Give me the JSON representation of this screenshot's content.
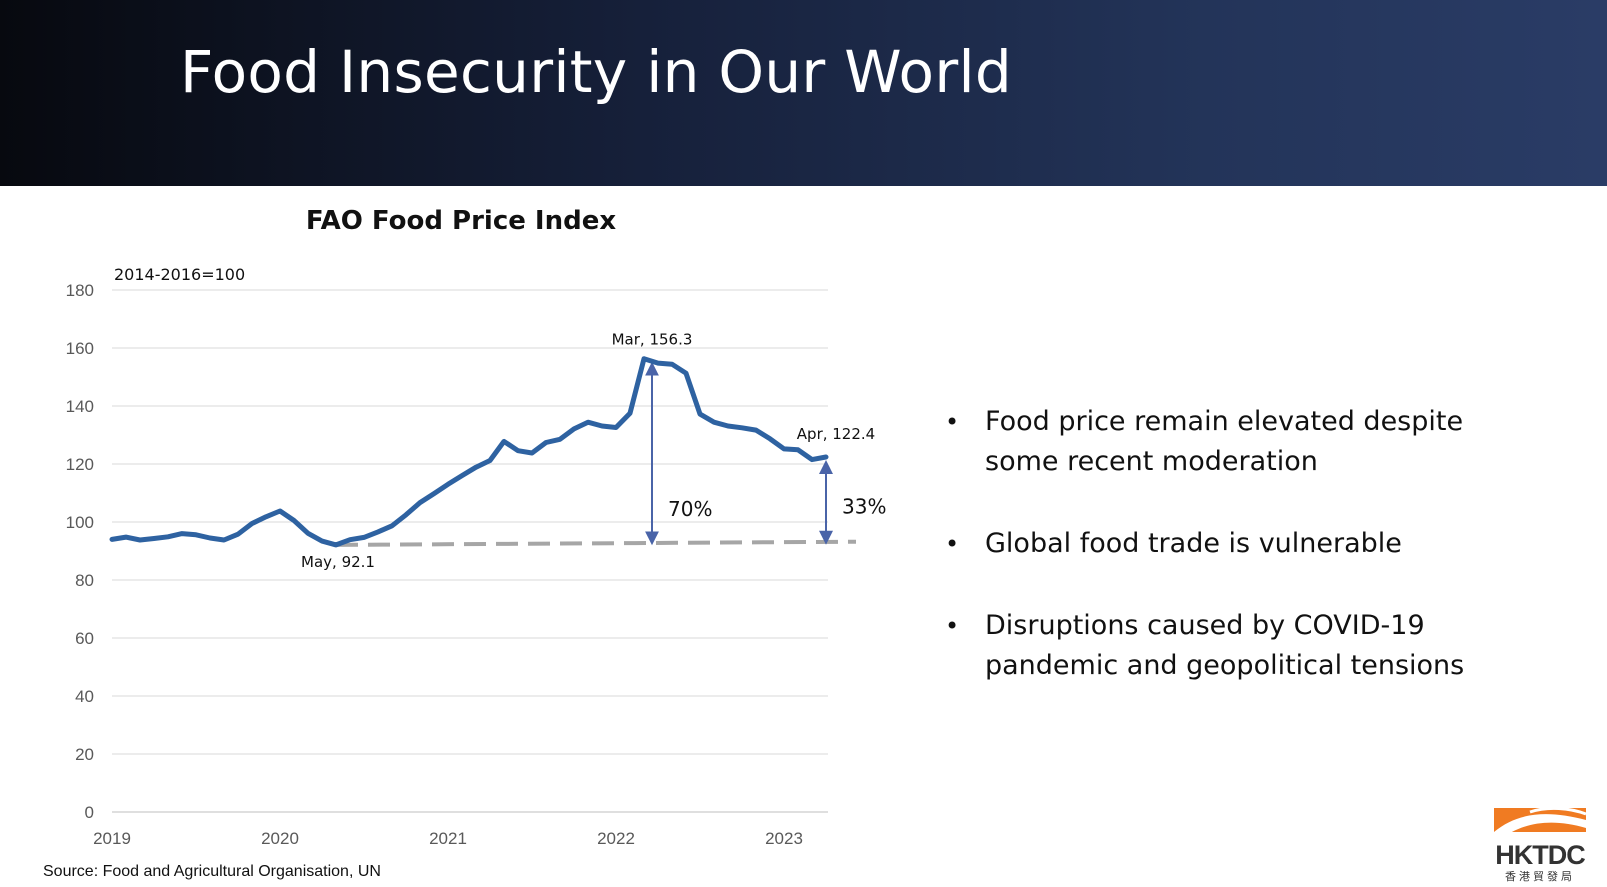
{
  "slide": {
    "title": "Food Insecurity in Our World",
    "source": "Source: Food and Agricultural Organisation, UN",
    "logo": {
      "text": "HKTDC",
      "subtext": "香港貿發局",
      "color": "#f07b22"
    },
    "bullets": [
      "Food price remain elevated despite some recent moderation",
      "Global food trade is vulnerable",
      "Disruptions caused by COVID-19 pandemic  and geopolitical tensions"
    ]
  },
  "chart_data": {
    "type": "line",
    "title": "FAO Food Price Index",
    "unit_label": "2014-2016=100",
    "xlabel": "",
    "ylabel": "",
    "x_tick_labels": [
      "2019",
      "2020",
      "2021",
      "2022",
      "2023"
    ],
    "x_range": [
      "2019-01",
      "2023-04"
    ],
    "ylim": [
      0,
      180
    ],
    "y_ticks": [
      0,
      20,
      40,
      60,
      80,
      100,
      120,
      140,
      160,
      180
    ],
    "grid": true,
    "legend": "none",
    "line_color": "#2e62a1",
    "baseline_color": "#a6a6a6",
    "arrow_color": "#4a64a8",
    "series": [
      {
        "x": [
          "2019-01",
          "2019-02",
          "2019-03",
          "2019-04",
          "2019-05",
          "2019-06",
          "2019-07",
          "2019-08",
          "2019-09",
          "2019-10",
          "2019-11",
          "2019-12",
          "2020-01",
          "2020-02",
          "2020-03",
          "2020-04",
          "2020-05",
          "2020-06",
          "2020-07",
          "2020-08",
          "2020-09",
          "2020-10",
          "2020-11",
          "2020-12",
          "2021-01",
          "2021-02",
          "2021-03",
          "2021-04",
          "2021-05",
          "2021-06",
          "2021-07",
          "2021-08",
          "2021-09",
          "2021-10",
          "2021-11",
          "2021-12",
          "2022-01",
          "2022-02",
          "2022-03",
          "2022-04",
          "2022-05",
          "2022-06",
          "2022-07",
          "2022-08",
          "2022-09",
          "2022-10",
          "2022-11",
          "2022-12",
          "2023-01",
          "2023-02",
          "2023-03",
          "2023-04"
        ],
        "values": [
          94.0,
          94.8,
          93.8,
          94.3,
          94.9,
          96.0,
          95.6,
          94.5,
          93.8,
          95.8,
          99.5,
          101.8,
          103.8,
          100.5,
          96.1,
          93.4,
          92.1,
          93.9,
          94.7,
          96.6,
          98.7,
          102.5,
          106.7,
          109.8,
          113.0,
          116.0,
          118.9,
          121.2,
          127.8,
          124.6,
          123.8,
          127.4,
          128.5,
          132.1,
          134.4,
          133.1,
          132.6,
          137.5,
          156.3,
          154.8,
          154.4,
          151.3,
          137.2,
          134.4,
          133.1,
          132.5,
          131.7,
          128.7,
          125.2,
          124.9,
          121.5,
          122.4
        ]
      }
    ],
    "baseline": {
      "value": 92.1,
      "end_value": 93.2,
      "style": "dashed",
      "from": "2020-05"
    },
    "annotations": [
      {
        "label": "May, 92.1",
        "x": "2020-05",
        "y": 92.1
      },
      {
        "label": "Mar, 156.3",
        "x": "2022-03",
        "y": 156.3
      },
      {
        "label": "Apr, 122.4",
        "x": "2023-04",
        "y": 122.4
      }
    ],
    "changes": [
      {
        "label": "70%",
        "x": "2022-03",
        "from": 93.0,
        "to": 156.3
      },
      {
        "label": "33%",
        "x": "2023-04",
        "from": 93.2,
        "to": 122.4
      }
    ]
  }
}
